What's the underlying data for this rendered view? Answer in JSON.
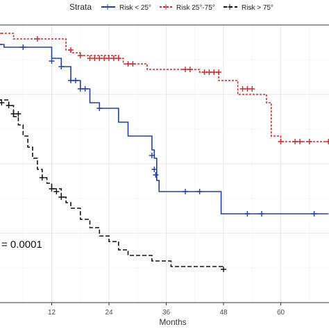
{
  "chart_data": {
    "type": "line",
    "xlabel": "Months",
    "ylabel": "",
    "xlim": [
      0,
      72
    ],
    "x_ticks": [
      12,
      24,
      36,
      48,
      60
    ],
    "x_tick_labels": [
      "12",
      "24",
      "36",
      "48",
      "60"
    ],
    "ylim": [
      0,
      1
    ],
    "grid": true,
    "legend": {
      "title": "Strata",
      "placement": "top",
      "labels": [
        "Risk < 25°",
        "Risk 25°-75°",
        "Risk > 75°"
      ]
    },
    "annotation": "= 0.0001",
    "series": [
      {
        "name": "Risk < 25°",
        "color": "#1f3fb0",
        "dash": "solid",
        "steps": [
          [
            0,
            0.93
          ],
          [
            2,
            0.92
          ],
          [
            12,
            0.88
          ],
          [
            14,
            0.85
          ],
          [
            16,
            0.8
          ],
          [
            18,
            0.77
          ],
          [
            20,
            0.72
          ],
          [
            22,
            0.7
          ],
          [
            26,
            0.65
          ],
          [
            28,
            0.6
          ],
          [
            33,
            0.55
          ],
          [
            33.5,
            0.52
          ],
          [
            34,
            0.44
          ],
          [
            34.5,
            0.4
          ],
          [
            47.5,
            0.32
          ],
          [
            70,
            0.32
          ]
        ],
        "censored": [
          [
            1,
            0.93
          ],
          [
            6,
            0.92
          ],
          [
            12,
            0.87
          ],
          [
            14,
            0.85
          ],
          [
            16,
            0.8
          ],
          [
            17,
            0.8
          ],
          [
            18,
            0.77
          ],
          [
            19,
            0.77
          ],
          [
            22,
            0.7
          ],
          [
            33,
            0.53
          ],
          [
            33.5,
            0.48
          ],
          [
            33.8,
            0.46
          ],
          [
            40,
            0.4
          ],
          [
            43,
            0.4
          ],
          [
            53,
            0.32
          ],
          [
            56,
            0.32
          ],
          [
            67,
            0.32
          ]
        ]
      },
      {
        "name": "Risk 25°-75°",
        "color": "#d62728",
        "dash": "dashed",
        "steps": [
          [
            0,
            0.97
          ],
          [
            4,
            0.95
          ],
          [
            15,
            0.91
          ],
          [
            16,
            0.9
          ],
          [
            18,
            0.89
          ],
          [
            26,
            0.88
          ],
          [
            27,
            0.86
          ],
          [
            32,
            0.84
          ],
          [
            43,
            0.83
          ],
          [
            47,
            0.8
          ],
          [
            51,
            0.75
          ],
          [
            57,
            0.72
          ],
          [
            58,
            0.6
          ],
          [
            60,
            0.58
          ],
          [
            72,
            0.58
          ]
        ],
        "censored": [
          [
            1,
            0.97
          ],
          [
            9,
            0.95
          ],
          [
            16,
            0.91
          ],
          [
            18,
            0.89
          ],
          [
            20,
            0.88
          ],
          [
            21,
            0.88
          ],
          [
            22,
            0.88
          ],
          [
            23,
            0.88
          ],
          [
            24,
            0.88
          ],
          [
            25,
            0.88
          ],
          [
            26,
            0.88
          ],
          [
            28,
            0.86
          ],
          [
            29,
            0.86
          ],
          [
            40,
            0.84
          ],
          [
            41,
            0.84
          ],
          [
            44,
            0.83
          ],
          [
            45,
            0.83
          ],
          [
            46,
            0.83
          ],
          [
            47,
            0.83
          ],
          [
            52,
            0.77
          ],
          [
            53,
            0.77
          ],
          [
            54,
            0.77
          ],
          [
            60,
            0.58
          ],
          [
            63,
            0.58
          ],
          [
            64,
            0.58
          ],
          [
            66,
            0.58
          ],
          [
            70,
            0.58
          ]
        ]
      },
      {
        "name": "Risk > 75°",
        "color": "#111111",
        "dash": "dashed",
        "steps": [
          [
            0,
            0.74
          ],
          [
            1,
            0.73
          ],
          [
            3,
            0.71
          ],
          [
            4,
            0.67
          ],
          [
            5,
            0.64
          ],
          [
            6,
            0.6
          ],
          [
            7,
            0.56
          ],
          [
            8,
            0.52
          ],
          [
            9,
            0.48
          ],
          [
            10,
            0.45
          ],
          [
            11,
            0.43
          ],
          [
            12,
            0.41
          ],
          [
            14,
            0.38
          ],
          [
            15,
            0.36
          ],
          [
            16,
            0.34
          ],
          [
            18,
            0.3
          ],
          [
            20,
            0.27
          ],
          [
            22,
            0.24
          ],
          [
            24,
            0.22
          ],
          [
            26,
            0.19
          ],
          [
            28,
            0.17
          ],
          [
            33,
            0.15
          ],
          [
            37,
            0.13
          ],
          [
            48,
            0.13
          ]
        ],
        "censored": [
          [
            0.5,
            0.74
          ],
          [
            1,
            0.73
          ],
          [
            1.5,
            0.72
          ],
          [
            3,
            0.71
          ],
          [
            4,
            0.68
          ],
          [
            5,
            0.68
          ],
          [
            10,
            0.45
          ],
          [
            12,
            0.41
          ],
          [
            13,
            0.4
          ],
          [
            14,
            0.38
          ],
          [
            48,
            0.12
          ]
        ]
      }
    ]
  }
}
